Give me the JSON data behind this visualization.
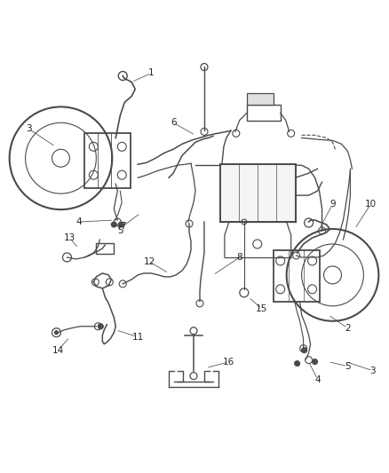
{
  "bg_color": "#ffffff",
  "line_color": "#4a4a4a",
  "label_color": "#222222",
  "fig_width": 4.38,
  "fig_height": 5.33,
  "dpi": 100
}
